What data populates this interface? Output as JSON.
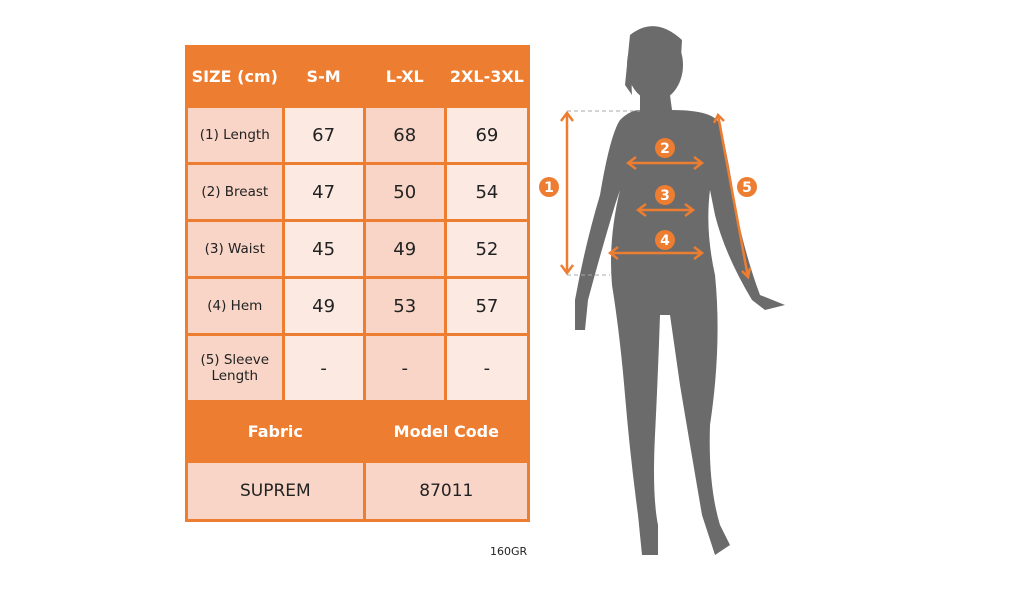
{
  "table": {
    "header": [
      "SIZE (cm)",
      "S-M",
      "L-XL",
      "2XL-3XL"
    ],
    "rows": [
      {
        "label": "(1) Length",
        "values": [
          "67",
          "68",
          "69"
        ]
      },
      {
        "label": "(2) Breast",
        "values": [
          "47",
          "50",
          "54"
        ]
      },
      {
        "label": "(3) Waist",
        "values": [
          "45",
          "49",
          "52"
        ]
      },
      {
        "label": "(4) Hem",
        "values": [
          "49",
          "53",
          "57"
        ]
      },
      {
        "label": "(5) Sleeve Length",
        "values": [
          "-",
          "-",
          "-"
        ]
      }
    ],
    "fabric_label": "Fabric",
    "model_code_label": "Model Code",
    "fabric": "SUPREM",
    "model_code": "87011"
  },
  "weight": "160GR",
  "markers": [
    "1",
    "2",
    "3",
    "4",
    "5"
  ],
  "colors": {
    "accent": "#ed7d31",
    "silhouette": "#6b6b6b"
  }
}
